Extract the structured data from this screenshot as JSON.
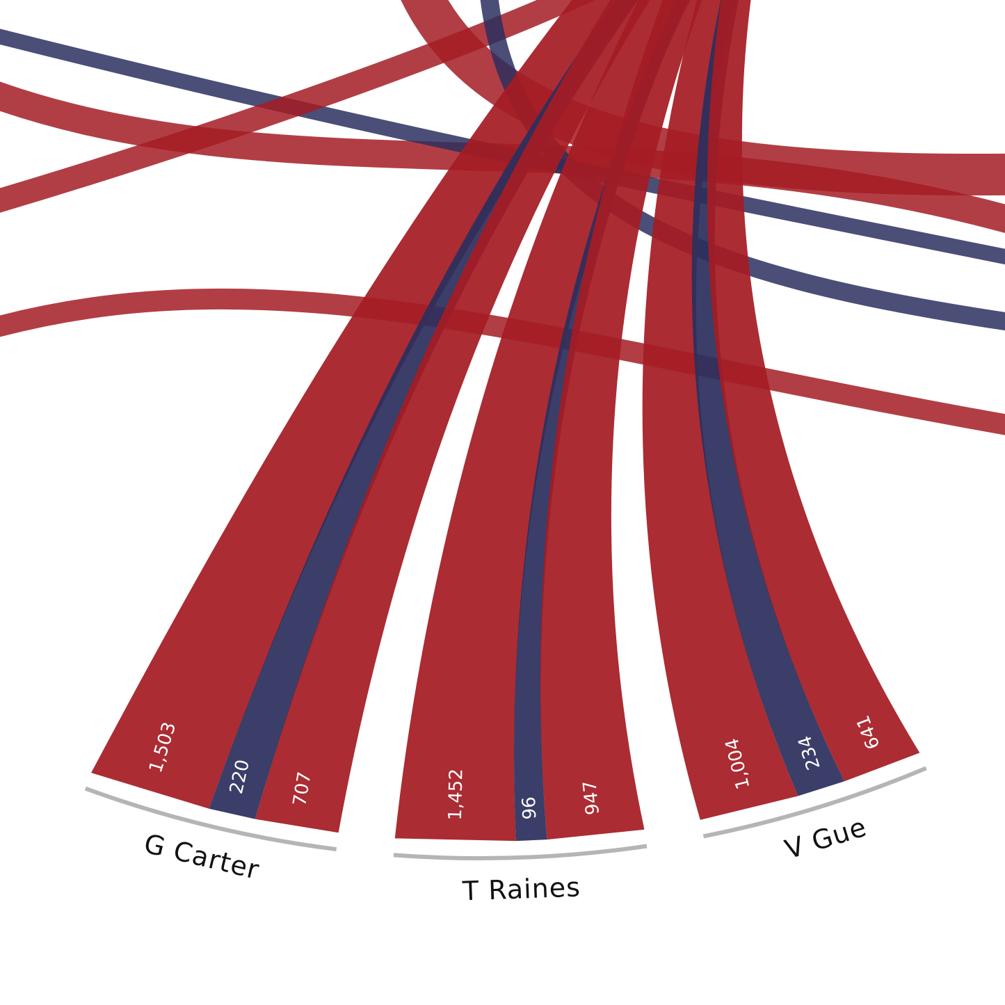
{
  "chart_data": {
    "type": "chord",
    "series": [
      {
        "name": "G Carter",
        "values": [
          1503,
          220,
          707
        ],
        "value_labels": [
          "1,503",
          "220",
          "707"
        ],
        "colors": [
          "#a51c24",
          "#2b2f5e",
          "#a51c24"
        ]
      },
      {
        "name": "T Raines",
        "values": [
          1452,
          96,
          947
        ],
        "value_labels": [
          "1,452",
          "96",
          "947"
        ],
        "colors": [
          "#a51c24",
          "#2b2f5e",
          "#a51c24"
        ]
      },
      {
        "name": "V Gue",
        "values": [
          1004,
          234,
          641
        ],
        "value_labels": [
          "1,004",
          "234",
          "641"
        ],
        "colors": [
          "#a51c24",
          "#2b2f5e",
          "#a51c24"
        ]
      }
    ]
  }
}
